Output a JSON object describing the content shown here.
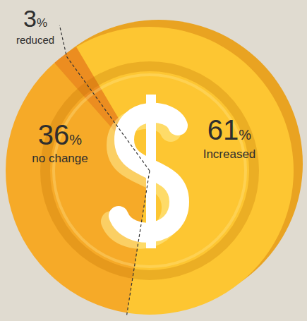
{
  "chart_data": {
    "type": "pie",
    "categories": [
      "no change",
      "reduced",
      "Increased"
    ],
    "values": [
      36,
      3,
      61
    ],
    "value_labels": [
      "36%",
      "3%",
      "61%"
    ],
    "colors": [
      "#f6aa28",
      "#ec8d20",
      "#fdc632"
    ],
    "data_labels": true
  }
}
